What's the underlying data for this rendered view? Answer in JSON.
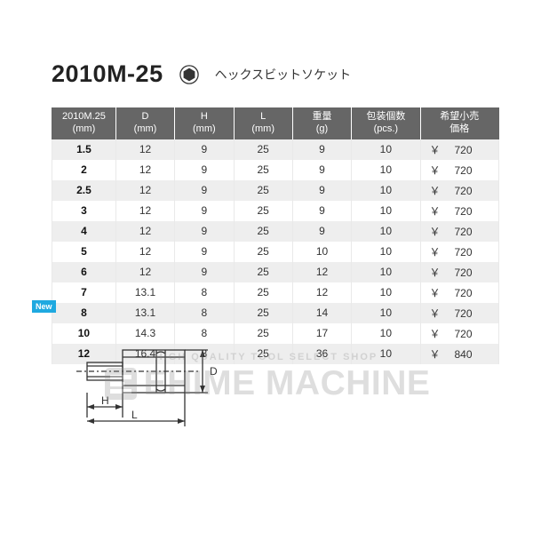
{
  "header": {
    "model": "2010M-25",
    "subtitle": "ヘックスビットソケット"
  },
  "table": {
    "columns": [
      {
        "l1": "2010M.25",
        "l2": "(mm)"
      },
      {
        "l1": "D",
        "l2": "(mm)"
      },
      {
        "l1": "H",
        "l2": "(mm)"
      },
      {
        "l1": "L",
        "l2": "(mm)"
      },
      {
        "l1": "重量",
        "l2": "(g)"
      },
      {
        "l1": "包装個数",
        "l2": "(pcs.)"
      },
      {
        "l1": "希望小売",
        "l2": "価格"
      }
    ],
    "currency": "￥",
    "rows": [
      {
        "size": "1.5",
        "d": "12",
        "h": "9",
        "l": "25",
        "w": "9",
        "pcs": "10",
        "price": "720"
      },
      {
        "size": "2",
        "d": "12",
        "h": "9",
        "l": "25",
        "w": "9",
        "pcs": "10",
        "price": "720"
      },
      {
        "size": "2.5",
        "d": "12",
        "h": "9",
        "l": "25",
        "w": "9",
        "pcs": "10",
        "price": "720"
      },
      {
        "size": "3",
        "d": "12",
        "h": "9",
        "l": "25",
        "w": "9",
        "pcs": "10",
        "price": "720"
      },
      {
        "size": "4",
        "d": "12",
        "h": "9",
        "l": "25",
        "w": "9",
        "pcs": "10",
        "price": "720"
      },
      {
        "size": "5",
        "d": "12",
        "h": "9",
        "l": "25",
        "w": "10",
        "pcs": "10",
        "price": "720"
      },
      {
        "size": "6",
        "d": "12",
        "h": "9",
        "l": "25",
        "w": "12",
        "pcs": "10",
        "price": "720"
      },
      {
        "size": "7",
        "d": "13.1",
        "h": "8",
        "l": "25",
        "w": "12",
        "pcs": "10",
        "price": "720"
      },
      {
        "size": "8",
        "d": "13.1",
        "h": "8",
        "l": "25",
        "w": "14",
        "pcs": "10",
        "price": "720"
      },
      {
        "size": "10",
        "d": "14.3",
        "h": "8",
        "l": "25",
        "w": "17",
        "pcs": "10",
        "price": "720"
      },
      {
        "size": "12",
        "d": "16.4",
        "h": "8",
        "l": "25",
        "w": "36",
        "pcs": "10",
        "price": "840"
      }
    ]
  },
  "badge": {
    "new": "New"
  },
  "diagram": {
    "labels": {
      "d": "D",
      "h": "H",
      "l": "L"
    }
  },
  "watermark": {
    "sub": "HIGH QUALITY TOOL SELECT SHOP",
    "main": "EHIME MACHINE"
  },
  "colors": {
    "header_bg": "#666666",
    "row_alt": "#eeeeee",
    "badge_bg": "#1fa9e0",
    "text": "#333333"
  }
}
